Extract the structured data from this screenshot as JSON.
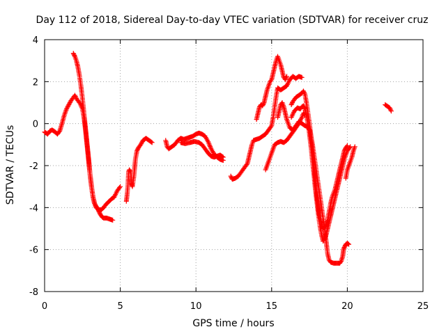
{
  "chart_data": {
    "type": "scatter",
    "title": "Day 112 of 2018, Sidereal Day-to-day VTEC variation (SDTVAR) for receiver cruz",
    "xlabel": "GPS time / hours",
    "ylabel": "SDTVAR / TECUs",
    "xlim": [
      0,
      25
    ],
    "ylim": [
      -8,
      4
    ],
    "xticks": [
      "0",
      "5",
      "10",
      "15",
      "20",
      "25"
    ],
    "yticks": [
      "-8",
      "-6",
      "-4",
      "-2",
      "0",
      "2",
      "4"
    ],
    "grid": true,
    "marker": "+",
    "color": "#ff0000",
    "series": [
      {
        "points": [
          [
            0.0,
            -0.4
          ],
          [
            0.2,
            -0.5
          ],
          [
            0.35,
            -0.35
          ],
          [
            0.5,
            -0.3
          ],
          [
            0.7,
            -0.4
          ],
          [
            0.85,
            -0.5
          ],
          [
            1.0,
            -0.35
          ],
          [
            1.15,
            0.0
          ],
          [
            1.3,
            0.4
          ],
          [
            1.45,
            0.7
          ],
          [
            1.6,
            0.9
          ],
          [
            1.75,
            1.1
          ],
          [
            1.9,
            1.25
          ],
          [
            2.0,
            1.35
          ],
          [
            2.1,
            1.2
          ],
          [
            2.2,
            1.1
          ],
          [
            2.35,
            0.95
          ],
          [
            2.5,
            0.7
          ],
          [
            2.6,
            0.3
          ],
          [
            2.7,
            -0.3
          ],
          [
            2.8,
            -1.0
          ],
          [
            2.9,
            -1.7
          ],
          [
            3.0,
            -2.4
          ],
          [
            3.1,
            -3.0
          ],
          [
            3.2,
            -3.5
          ],
          [
            3.3,
            -3.8
          ],
          [
            3.45,
            -4.0
          ],
          [
            3.6,
            -4.1
          ],
          [
            3.75,
            -4.1
          ],
          [
            3.9,
            -4.0
          ],
          [
            4.05,
            -3.85
          ],
          [
            4.2,
            -3.75
          ],
          [
            4.4,
            -3.6
          ],
          [
            4.6,
            -3.5
          ],
          [
            4.8,
            -3.2
          ],
          [
            5.0,
            -3.0
          ]
        ]
      },
      {
        "points": [
          [
            1.9,
            3.35
          ],
          [
            2.0,
            3.2
          ],
          [
            2.1,
            3.0
          ],
          [
            2.2,
            2.7
          ],
          [
            2.3,
            2.3
          ],
          [
            2.4,
            1.8
          ],
          [
            2.5,
            1.2
          ],
          [
            2.6,
            0.5
          ],
          [
            2.7,
            -0.2
          ],
          [
            2.8,
            -0.9
          ],
          [
            2.9,
            -1.6
          ],
          [
            3.0,
            -2.4
          ],
          [
            3.1,
            -3.0
          ],
          [
            3.2,
            -3.5
          ],
          [
            3.3,
            -3.8
          ],
          [
            3.4,
            -4.0
          ],
          [
            3.5,
            -4.05
          ],
          [
            3.6,
            -4.2
          ],
          [
            3.7,
            -4.35
          ],
          [
            3.8,
            -4.45
          ],
          [
            3.9,
            -4.5
          ],
          [
            4.1,
            -4.5
          ],
          [
            4.3,
            -4.55
          ],
          [
            4.5,
            -4.6
          ]
        ]
      },
      {
        "points": [
          [
            5.4,
            -3.7
          ],
          [
            5.45,
            -3.4
          ],
          [
            5.5,
            -3.0
          ],
          [
            5.55,
            -2.3
          ],
          [
            5.6,
            -2.2
          ],
          [
            5.7,
            -2.3
          ],
          [
            5.75,
            -2.9
          ],
          [
            5.8,
            -3.0
          ],
          [
            5.9,
            -2.5
          ],
          [
            6.0,
            -1.7
          ],
          [
            6.1,
            -1.3
          ],
          [
            6.2,
            -1.15
          ],
          [
            6.35,
            -1.0
          ],
          [
            6.5,
            -0.8
          ],
          [
            6.7,
            -0.7
          ],
          [
            6.9,
            -0.8
          ],
          [
            7.1,
            -0.9
          ]
        ]
      },
      {
        "points": [
          [
            8.0,
            -0.8
          ],
          [
            8.1,
            -1.1
          ],
          [
            8.2,
            -1.2
          ],
          [
            8.4,
            -1.1
          ],
          [
            8.6,
            -1.0
          ],
          [
            8.8,
            -0.8
          ],
          [
            9.0,
            -0.7
          ],
          [
            9.2,
            -0.75
          ],
          [
            9.4,
            -0.7
          ],
          [
            9.6,
            -0.65
          ],
          [
            9.8,
            -0.6
          ],
          [
            10.0,
            -0.5
          ],
          [
            10.2,
            -0.45
          ],
          [
            10.4,
            -0.5
          ],
          [
            10.6,
            -0.6
          ],
          [
            10.8,
            -0.85
          ],
          [
            11.0,
            -1.2
          ],
          [
            11.2,
            -1.45
          ],
          [
            11.4,
            -1.6
          ],
          [
            11.6,
            -1.7
          ],
          [
            11.8,
            -1.75
          ]
        ]
      },
      {
        "points": [
          [
            9.0,
            -0.9
          ],
          [
            9.3,
            -0.95
          ],
          [
            9.6,
            -0.9
          ],
          [
            9.9,
            -0.85
          ],
          [
            10.2,
            -0.9
          ],
          [
            10.4,
            -1.0
          ],
          [
            10.6,
            -1.2
          ],
          [
            10.8,
            -1.4
          ],
          [
            11.0,
            -1.55
          ],
          [
            11.2,
            -1.6
          ],
          [
            11.4,
            -1.55
          ],
          [
            11.6,
            -1.5
          ],
          [
            11.8,
            -1.6
          ]
        ]
      },
      {
        "points": [
          [
            12.3,
            -2.5
          ],
          [
            12.4,
            -2.65
          ],
          [
            12.6,
            -2.6
          ],
          [
            12.8,
            -2.5
          ],
          [
            13.0,
            -2.3
          ],
          [
            13.2,
            -2.1
          ],
          [
            13.4,
            -1.9
          ],
          [
            13.5,
            -1.6
          ],
          [
            13.6,
            -1.3
          ],
          [
            13.7,
            -1.0
          ],
          [
            13.8,
            -0.8
          ],
          [
            14.0,
            -0.75
          ],
          [
            14.2,
            -0.7
          ],
          [
            14.4,
            -0.6
          ],
          [
            14.6,
            -0.5
          ],
          [
            14.8,
            -0.3
          ],
          [
            15.0,
            -0.1
          ],
          [
            15.1,
            0.3
          ],
          [
            15.2,
            0.8
          ],
          [
            15.3,
            1.3
          ],
          [
            15.4,
            1.7
          ],
          [
            15.5,
            1.65
          ],
          [
            15.6,
            1.6
          ],
          [
            15.8,
            1.7
          ],
          [
            16.0,
            1.8
          ],
          [
            16.2,
            2.1
          ],
          [
            16.4,
            2.25
          ],
          [
            16.6,
            2.15
          ],
          [
            16.8,
            2.25
          ],
          [
            17.0,
            2.2
          ]
        ]
      },
      {
        "points": [
          [
            14.0,
            0.2
          ],
          [
            14.1,
            0.5
          ],
          [
            14.2,
            0.8
          ],
          [
            14.3,
            0.9
          ],
          [
            14.4,
            0.85
          ],
          [
            14.5,
            1.0
          ],
          [
            14.6,
            1.3
          ],
          [
            14.7,
            1.6
          ],
          [
            14.8,
            1.8
          ],
          [
            14.9,
            2.0
          ],
          [
            15.0,
            2.1
          ],
          [
            15.1,
            2.4
          ],
          [
            15.2,
            2.7
          ],
          [
            15.3,
            3.0
          ],
          [
            15.4,
            3.2
          ],
          [
            15.5,
            3.0
          ],
          [
            15.6,
            2.8
          ],
          [
            15.7,
            2.5
          ],
          [
            15.8,
            2.2
          ],
          [
            15.9,
            2.1
          ],
          [
            16.0,
            2.25
          ]
        ]
      },
      {
        "points": [
          [
            14.6,
            -2.2
          ],
          [
            14.7,
            -2.0
          ],
          [
            14.8,
            -1.8
          ],
          [
            14.9,
            -1.6
          ],
          [
            15.0,
            -1.4
          ],
          [
            15.1,
            -1.2
          ],
          [
            15.2,
            -1.0
          ],
          [
            15.4,
            -0.9
          ],
          [
            15.6,
            -0.85
          ],
          [
            15.8,
            -0.9
          ],
          [
            16.0,
            -0.8
          ],
          [
            16.2,
            -0.6
          ],
          [
            16.4,
            -0.4
          ],
          [
            16.6,
            -0.2
          ],
          [
            16.8,
            0.0
          ],
          [
            17.0,
            0.3
          ],
          [
            17.1,
            0.5
          ],
          [
            17.2,
            0.4
          ]
        ]
      },
      {
        "points": [
          [
            15.4,
            0.3
          ],
          [
            15.5,
            0.6
          ],
          [
            15.6,
            0.9
          ],
          [
            15.7,
            1.0
          ],
          [
            15.8,
            0.8
          ],
          [
            15.9,
            0.5
          ],
          [
            16.0,
            0.2
          ],
          [
            16.1,
            0.0
          ],
          [
            16.2,
            -0.2
          ],
          [
            16.4,
            -0.3
          ],
          [
            16.6,
            -0.1
          ],
          [
            16.8,
            0.1
          ],
          [
            17.0,
            0.0
          ],
          [
            17.2,
            -0.1
          ],
          [
            17.4,
            -0.15
          ],
          [
            17.5,
            -0.3
          ],
          [
            17.6,
            -0.6
          ],
          [
            17.7,
            -1.0
          ],
          [
            17.8,
            -1.5
          ],
          [
            17.9,
            -2.0
          ],
          [
            18.0,
            -2.5
          ],
          [
            18.1,
            -3.0
          ],
          [
            18.2,
            -3.5
          ],
          [
            18.3,
            -4.0
          ],
          [
            18.4,
            -4.5
          ],
          [
            18.5,
            -5.0
          ],
          [
            18.6,
            -5.6
          ],
          [
            18.7,
            -6.2
          ],
          [
            18.8,
            -6.5
          ],
          [
            18.9,
            -6.6
          ],
          [
            19.1,
            -6.65
          ],
          [
            19.3,
            -6.65
          ],
          [
            19.5,
            -6.65
          ],
          [
            19.6,
            -6.55
          ],
          [
            19.7,
            -6.3
          ],
          [
            19.75,
            -6.0
          ],
          [
            19.8,
            -5.9
          ],
          [
            19.9,
            -5.75
          ],
          [
            20.0,
            -5.7
          ],
          [
            20.1,
            -5.75
          ]
        ]
      },
      {
        "points": [
          [
            16.3,
            0.9
          ],
          [
            16.4,
            1.05
          ],
          [
            16.5,
            1.15
          ],
          [
            16.6,
            1.25
          ],
          [
            16.7,
            1.3
          ],
          [
            16.8,
            1.35
          ],
          [
            16.9,
            1.4
          ],
          [
            17.0,
            1.45
          ],
          [
            17.1,
            1.55
          ],
          [
            17.2,
            1.4
          ],
          [
            17.3,
            1.0
          ],
          [
            17.4,
            0.5
          ],
          [
            17.5,
            0.0
          ],
          [
            17.6,
            -0.6
          ],
          [
            17.7,
            -1.3
          ],
          [
            17.8,
            -2.0
          ],
          [
            17.9,
            -2.8
          ],
          [
            18.0,
            -3.5
          ],
          [
            18.1,
            -4.1
          ],
          [
            18.2,
            -4.5
          ],
          [
            18.3,
            -4.8
          ],
          [
            18.4,
            -5.0
          ],
          [
            18.5,
            -4.95
          ],
          [
            18.6,
            -4.8
          ],
          [
            18.7,
            -4.6
          ],
          [
            18.8,
            -4.2
          ],
          [
            18.9,
            -3.8
          ],
          [
            19.0,
            -3.5
          ],
          [
            19.1,
            -3.3
          ],
          [
            19.2,
            -3.1
          ],
          [
            19.3,
            -2.8
          ],
          [
            19.4,
            -2.5
          ],
          [
            19.5,
            -2.2
          ],
          [
            19.6,
            -1.9
          ],
          [
            19.7,
            -1.6
          ],
          [
            19.8,
            -1.3
          ],
          [
            19.9,
            -1.15
          ],
          [
            20.0,
            -1.05
          ]
        ]
      },
      {
        "points": [
          [
            16.3,
            0.3
          ],
          [
            16.5,
            0.6
          ],
          [
            16.7,
            0.75
          ],
          [
            16.9,
            0.7
          ],
          [
            17.0,
            0.8
          ],
          [
            17.1,
            0.85
          ],
          [
            17.2,
            0.7
          ],
          [
            17.3,
            0.4
          ],
          [
            17.4,
            0.0
          ],
          [
            17.5,
            -0.5
          ],
          [
            17.6,
            -1.1
          ],
          [
            17.7,
            -1.8
          ],
          [
            17.8,
            -2.5
          ],
          [
            17.9,
            -3.2
          ],
          [
            18.0,
            -3.8
          ],
          [
            18.1,
            -4.4
          ],
          [
            18.2,
            -4.9
          ],
          [
            18.3,
            -5.3
          ],
          [
            18.4,
            -5.6
          ],
          [
            18.5,
            -5.5
          ],
          [
            18.6,
            -5.3
          ],
          [
            18.7,
            -5.0
          ],
          [
            18.8,
            -4.7
          ],
          [
            18.9,
            -4.4
          ],
          [
            19.0,
            -4.1
          ],
          [
            19.1,
            -3.8
          ],
          [
            19.2,
            -3.5
          ],
          [
            19.3,
            -3.2
          ],
          [
            19.4,
            -2.9
          ],
          [
            19.5,
            -2.6
          ],
          [
            19.6,
            -2.3
          ],
          [
            19.7,
            -2.0
          ],
          [
            19.8,
            -1.7
          ],
          [
            19.9,
            -1.5
          ],
          [
            20.0,
            -1.3
          ],
          [
            20.1,
            -1.2
          ],
          [
            20.2,
            -1.1
          ]
        ]
      },
      {
        "points": [
          [
            19.9,
            -2.6
          ],
          [
            20.0,
            -2.2
          ],
          [
            20.1,
            -2.0
          ],
          [
            20.2,
            -1.8
          ],
          [
            20.3,
            -1.6
          ],
          [
            20.4,
            -1.3
          ],
          [
            20.5,
            -1.1
          ]
        ]
      },
      {
        "points": [
          [
            22.5,
            0.9
          ],
          [
            22.6,
            0.85
          ],
          [
            22.7,
            0.8
          ],
          [
            22.8,
            0.75
          ],
          [
            22.9,
            0.6
          ]
        ]
      }
    ]
  }
}
